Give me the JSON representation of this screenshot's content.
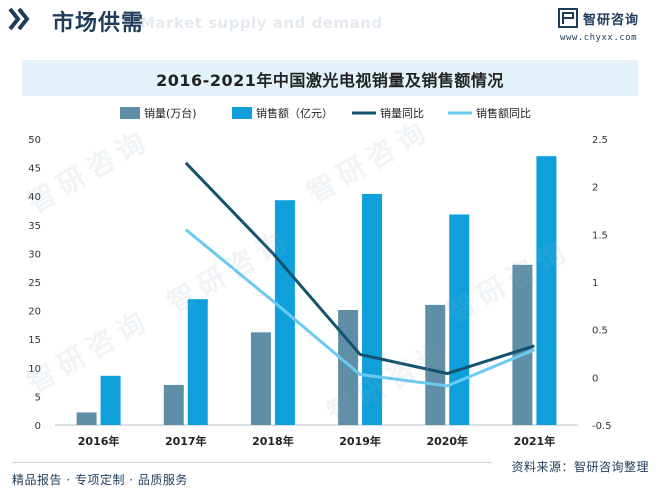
{
  "header": {
    "title": "市场供需",
    "watermark": "Market supply and demand",
    "brand_name": "智研咨询",
    "brand_url": "www.chyxx.com"
  },
  "watermark_text": "智研咨询",
  "colors": {
    "bar_volume": "#5f8ea7",
    "bar_sales": "#0fa0db",
    "line_volume_yoy": "#14536e",
    "line_sales_yoy": "#6ccaf0",
    "title_band": "#e3f2fb",
    "brand": "#1f3c5a"
  },
  "chart_data": {
    "type": "bar",
    "title": "2016-2021年中国激光电视销量及销售额情况",
    "categories": [
      "2016年",
      "2017年",
      "2018年",
      "2019年",
      "2020年",
      "2021年"
    ],
    "series": [
      {
        "name": "销量(万台)",
        "type": "bar",
        "axis": "left",
        "values": [
          2.2,
          7.0,
          16.2,
          20.1,
          21.0,
          28.0
        ]
      },
      {
        "name": "销售额（亿元）",
        "type": "bar",
        "axis": "left",
        "values": [
          8.6,
          22.0,
          39.3,
          40.4,
          36.8,
          47.0
        ]
      },
      {
        "name": "销量同比",
        "type": "line",
        "axis": "right",
        "values": [
          null,
          2.25,
          1.3,
          0.24,
          0.04,
          0.33
        ]
      },
      {
        "name": "销售额同比",
        "type": "line",
        "axis": "right",
        "values": [
          null,
          1.55,
          0.8,
          0.03,
          -0.09,
          0.29
        ]
      }
    ],
    "y_left": {
      "min": 0,
      "max": 50,
      "ticks": [
        "0",
        "5",
        "10",
        "15",
        "20",
        "25",
        "30",
        "35",
        "40",
        "45",
        "50"
      ]
    },
    "y_right": {
      "min": -0.5,
      "max": 2.5,
      "ticks": [
        "-0.5",
        "0",
        "0.5",
        "1",
        "1.5",
        "2",
        "2.5"
      ]
    },
    "legend_position": "top",
    "grid": false
  },
  "footer": {
    "left": "精品报告 · 专项定制 · 品质服务",
    "right": "资料来源：智研咨询整理"
  }
}
